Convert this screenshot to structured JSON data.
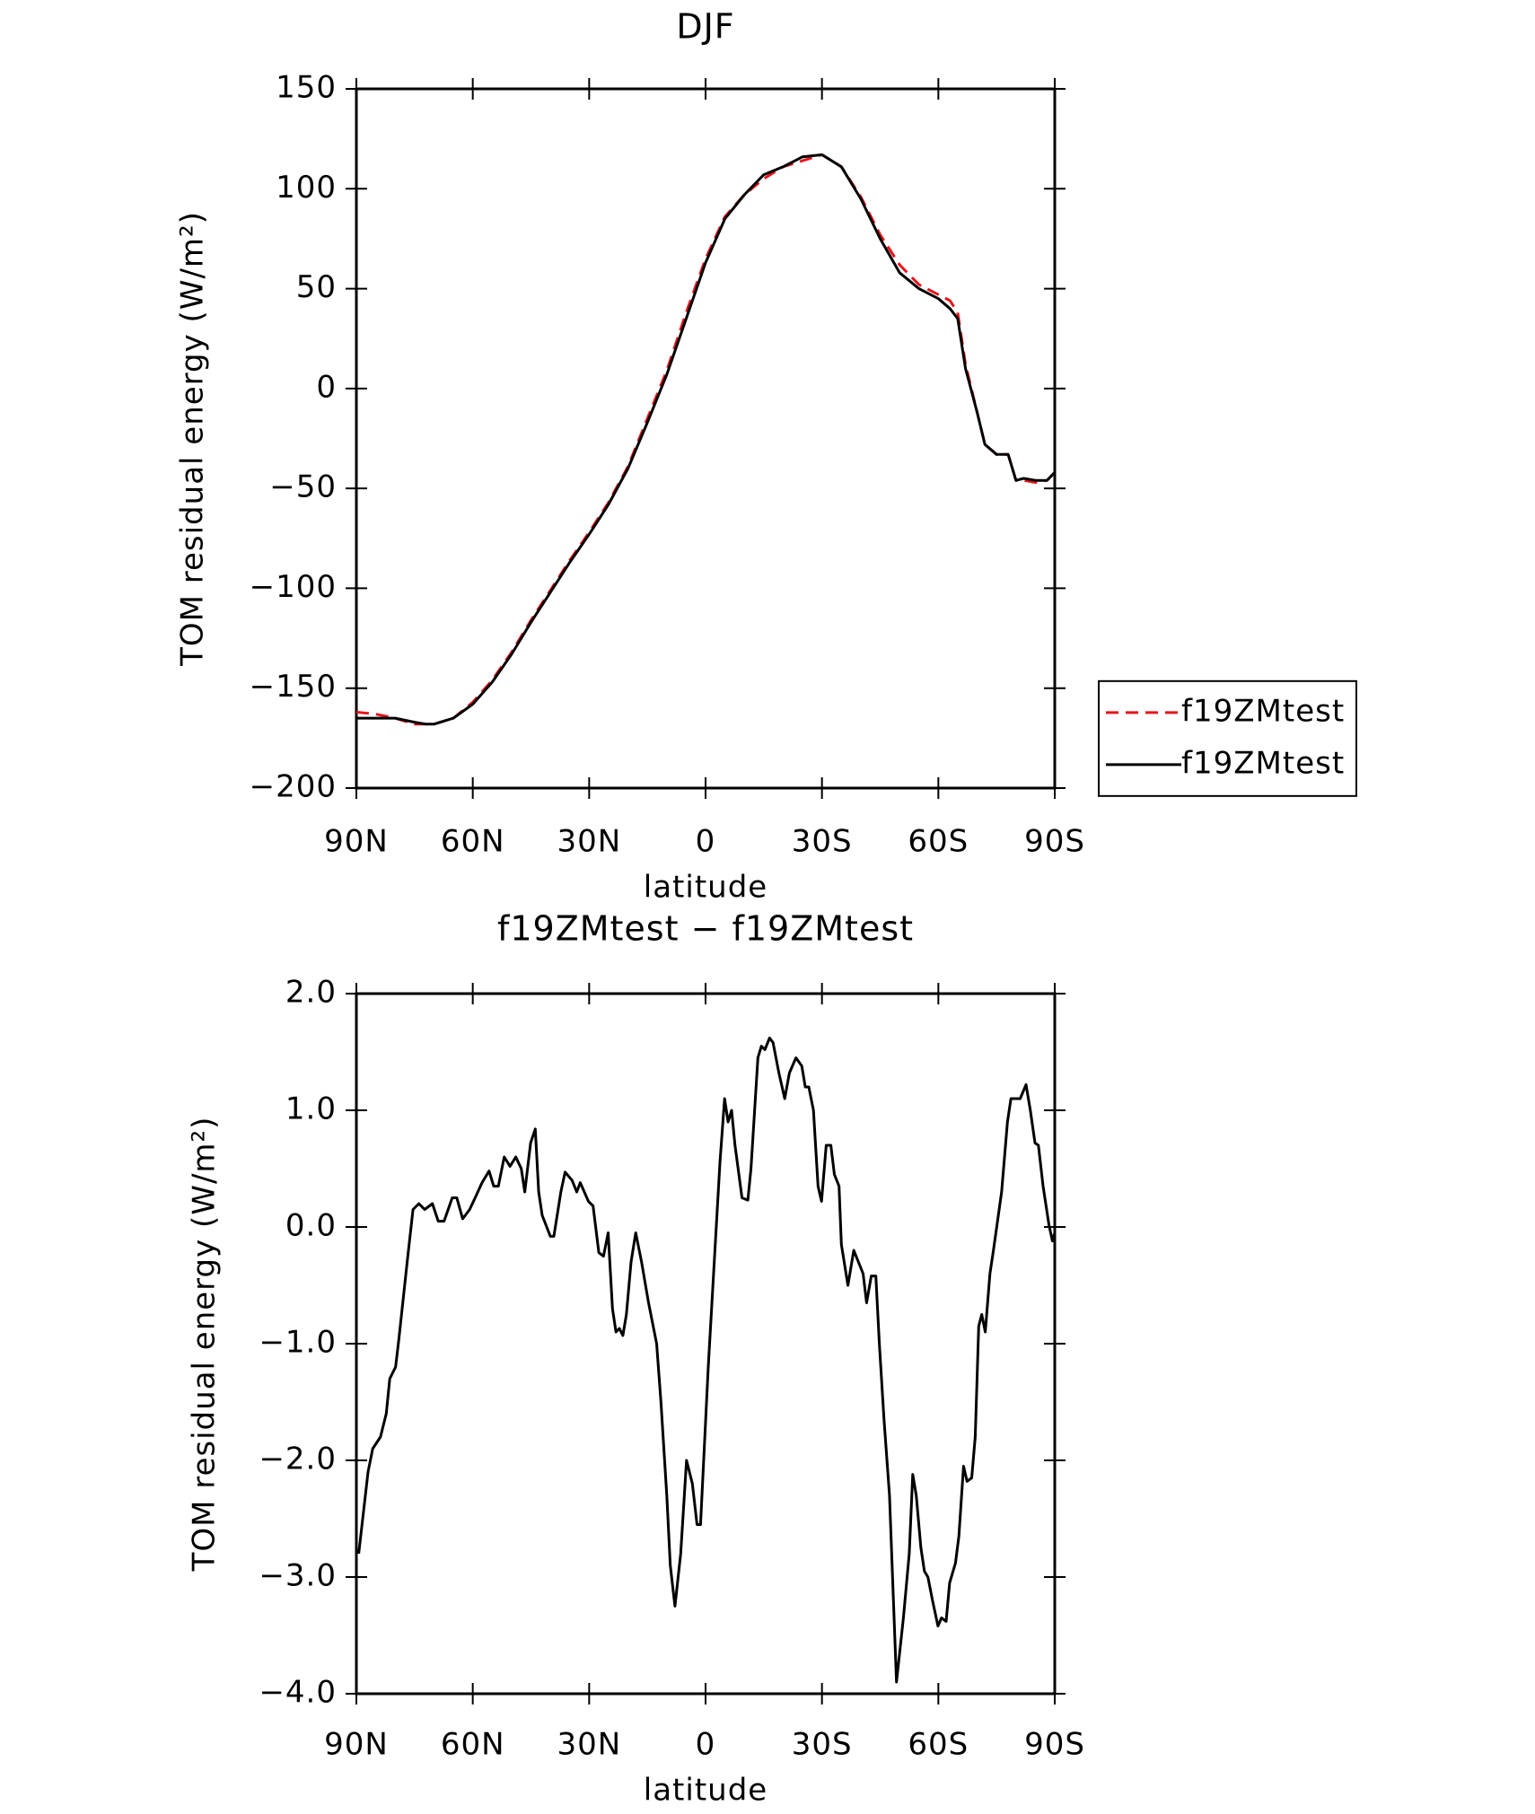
{
  "chart_data": [
    {
      "type": "line",
      "title": "DJF",
      "xlabel": "latitude",
      "ylabel": "TOM residual energy (W/m²)",
      "x": [
        90,
        85,
        80,
        75,
        72,
        70,
        65,
        60,
        55,
        50,
        45,
        40,
        35,
        30,
        25,
        20,
        15,
        10,
        5,
        0,
        -5,
        -10,
        -15,
        -20,
        -25,
        -30,
        -35,
        -40,
        -45,
        -50,
        -55,
        -60,
        -63,
        -65,
        -67,
        -70,
        -72,
        -75,
        -78,
        -80,
        -82,
        -85,
        -88,
        -90
      ],
      "series": [
        {
          "name": "f19ZMtest",
          "color": "#e8141b",
          "dashed": true,
          "values": [
            -162,
            -163,
            -165,
            -168,
            -168,
            -168,
            -165,
            -157,
            -146,
            -132,
            -116,
            -101,
            -86,
            -72,
            -57,
            -39,
            -15,
            9,
            38,
            65,
            86,
            97,
            105,
            111,
            114,
            117,
            111,
            96,
            77,
            62,
            52,
            47,
            44,
            38,
            12,
            -12,
            -28,
            -33,
            -33,
            -46,
            -46,
            -47,
            -46,
            -42
          ]
        },
        {
          "name": "f19ZMtest",
          "color": "#000000",
          "dashed": false,
          "values": [
            -165,
            -165,
            -165,
            -167,
            -168,
            -168,
            -165,
            -158,
            -147,
            -133,
            -117,
            -102,
            -87,
            -73,
            -58,
            -40,
            -17,
            7,
            35,
            63,
            85,
            97,
            107,
            111,
            116,
            117,
            111,
            95,
            75,
            58,
            50,
            45,
            40,
            35,
            10,
            -12,
            -28,
            -33,
            -33,
            -46,
            -45,
            -46,
            -46,
            -42
          ]
        }
      ],
      "xlim": [
        90,
        -90
      ],
      "xticks": [
        {
          "value": 90,
          "label": "90N"
        },
        {
          "value": 60,
          "label": "60N"
        },
        {
          "value": 30,
          "label": "30N"
        },
        0,
        {
          "value": -30,
          "label": "30S"
        },
        {
          "value": -60,
          "label": "60S"
        },
        {
          "value": -90,
          "label": "90S"
        }
      ],
      "ylim": [
        -200,
        150
      ],
      "yticks": [
        {
          "value": -200,
          "label": "−200"
        },
        {
          "value": -150,
          "label": "−150"
        },
        {
          "value": -100,
          "label": "−100"
        },
        {
          "value": -50,
          "label": "−50"
        },
        0,
        50,
        100,
        150
      ],
      "legend": "right"
    },
    {
      "type": "line",
      "title": "f19ZMtest − f19ZMtest",
      "xlabel": "latitude",
      "ylabel": "TOM residual energy (W/m²)",
      "x": [
        89.4,
        87.0,
        85.8,
        83.8,
        82.3,
        81.4,
        79.9,
        79.0,
        76.9,
        75.4,
        73.9,
        72.4,
        70.4,
        68.9,
        67.4,
        65.3,
        64.1,
        62.6,
        60.8,
        59.4,
        57.6,
        55.8,
        54.6,
        53.4,
        51.9,
        50.4,
        48.9,
        47.5,
        46.6,
        45.1,
        43.9,
        43.0,
        42.1,
        40.0,
        39.1,
        37.3,
        36.2,
        34.4,
        33.2,
        32.3,
        30.2,
        29.0,
        27.5,
        26.3,
        25.1,
        24.0,
        23.1,
        22.2,
        21.3,
        20.4,
        19.2,
        18.0,
        16.5,
        14.7,
        12.6,
        11.5,
        10.0,
        9.1,
        7.9,
        6.4,
        4.9,
        3.4,
        2.2,
        1.3,
        -0.7,
        -3.7,
        -4.9,
        -5.8,
        -6.7,
        -7.6,
        -9.4,
        -10.9,
        -11.7,
        -13.5,
        -14.4,
        -15.3,
        -16.5,
        -17.4,
        -18.9,
        -20.4,
        -21.6,
        -23.3,
        -24.8,
        -25.7,
        -26.6,
        -27.8,
        -29.0,
        -29.9,
        -31.1,
        -32.3,
        -33.2,
        -34.4,
        -35.0,
        -36.7,
        -38.2,
        -39.4,
        -40.6,
        -41.5,
        -42.7,
        -43.9,
        -44.8,
        -46.0,
        -47.4,
        -49.2,
        -51.0,
        -52.5,
        -53.4,
        -54.3,
        -55.5,
        -56.4,
        -57.3,
        -58.5,
        -59.9,
        -60.8,
        -62.0,
        -62.9,
        -64.4,
        -65.3,
        -66.5,
        -67.4,
        -68.6,
        -69.5,
        -70.4,
        -71.2,
        -72.1,
        -73.3,
        -74.2,
        -76.3,
        -77.8,
        -78.7,
        -81.1,
        -82.6,
        -83.7,
        -84.9,
        -85.8,
        -87.0,
        -88.5,
        -89.4,
        -90.0
      ],
      "values": [
        -2.8,
        -2.1,
        -1.9,
        -1.8,
        -1.6,
        -1.3,
        -1.2,
        -0.95,
        -0.3,
        0.15,
        0.2,
        0.15,
        0.2,
        0.05,
        0.05,
        0.25,
        0.25,
        0.07,
        0.15,
        0.25,
        0.38,
        0.48,
        0.35,
        0.35,
        0.6,
        0.52,
        0.6,
        0.5,
        0.3,
        0.72,
        0.84,
        0.3,
        0.1,
        -0.08,
        -0.08,
        0.3,
        0.47,
        0.4,
        0.3,
        0.38,
        0.22,
        0.18,
        -0.22,
        -0.25,
        -0.05,
        -0.7,
        -0.9,
        -0.87,
        -0.93,
        -0.75,
        -0.3,
        -0.05,
        -0.3,
        -0.65,
        -1,
        -1.5,
        -2.3,
        -2.9,
        -3.25,
        -2.8,
        -2,
        -2.2,
        -2.55,
        -2.55,
        -1.2,
        0.55,
        1.1,
        0.9,
        1.0,
        0.7,
        0.25,
        0.23,
        0.5,
        1.45,
        1.55,
        1.52,
        1.62,
        1.58,
        1.32,
        1.1,
        1.32,
        1.45,
        1.38,
        1.2,
        1.2,
        1.0,
        0.35,
        0.22,
        0.7,
        0.7,
        0.45,
        0.35,
        -0.15,
        -0.5,
        -0.2,
        -0.3,
        -0.4,
        -0.65,
        -0.42,
        -0.42,
        -1,
        -1.65,
        -2.3,
        -3.9,
        -3.35,
        -2.8,
        -2.12,
        -2.3,
        -2.75,
        -2.95,
        -3.0,
        -3.2,
        -3.42,
        -3.35,
        -3.38,
        -3.05,
        -2.88,
        -2.65,
        -2.05,
        -2.18,
        -2.15,
        -1.8,
        -0.85,
        -0.75,
        -0.9,
        -0.4,
        -0.2,
        0.3,
        0.9,
        1.1,
        1.1,
        1.22,
        1.0,
        0.72,
        0.7,
        0.35,
        0.02,
        -0.12,
        -0.05
      ],
      "color": "#000000",
      "xlim": [
        90,
        -90
      ],
      "xticks": [
        {
          "value": 90,
          "label": "90N"
        },
        {
          "value": 60,
          "label": "60N"
        },
        {
          "value": 30,
          "label": "30N"
        },
        0,
        {
          "value": -30,
          "label": "30S"
        },
        {
          "value": -60,
          "label": "60S"
        },
        {
          "value": -90,
          "label": "90S"
        }
      ],
      "ylim": [
        -4,
        2
      ],
      "yticks": [
        {
          "value": -4,
          "label": "−4.0"
        },
        {
          "value": -3,
          "label": "−3.0"
        },
        {
          "value": -2,
          "label": "−2.0"
        },
        {
          "value": -1,
          "label": "−1.0"
        },
        {
          "value": 0,
          "label": "0.0"
        },
        {
          "value": 1,
          "label": "1.0"
        },
        {
          "value": 2,
          "label": "2.0"
        }
      ]
    }
  ]
}
